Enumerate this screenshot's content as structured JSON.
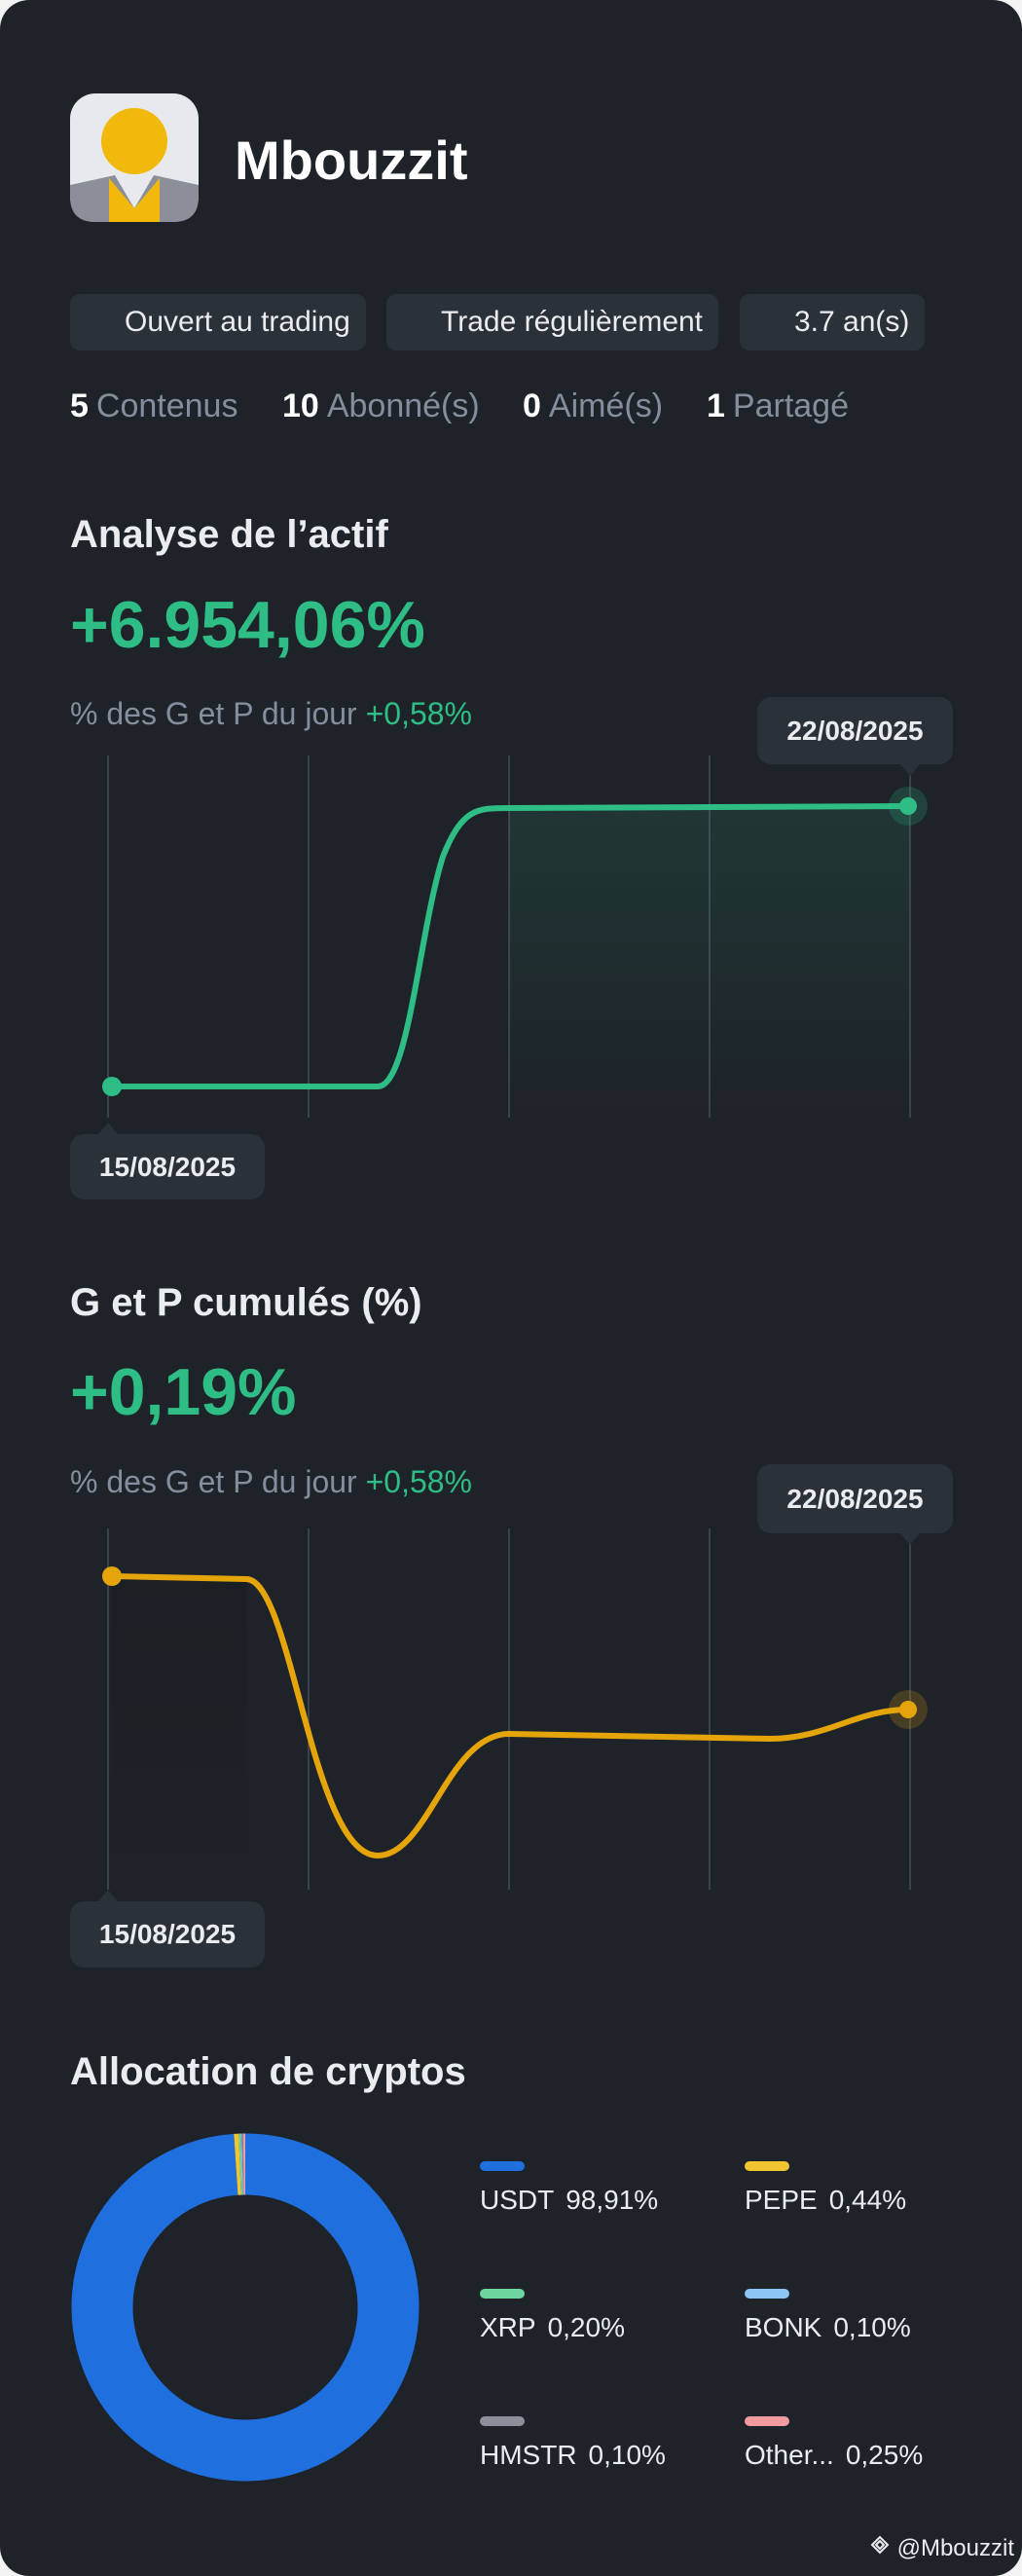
{
  "profile": {
    "name": "Mbouzzit",
    "badges": [
      "Ouvert au trading",
      "Trade régulièrement",
      "3.7 an(s)"
    ],
    "stats": [
      {
        "value": 5,
        "label": "Contenus"
      },
      {
        "value": 10,
        "label": "Abonné(s)"
      },
      {
        "value": 0,
        "label": "Aimé(s)"
      },
      {
        "value": 1,
        "label": "Partagé"
      }
    ]
  },
  "asset_analysis": {
    "title": "Analyse de l’actif",
    "value": "+6.954,06%",
    "daily_label": "% des G et P du jour",
    "daily_value": "+0,58%",
    "start_date": "15/08/2025",
    "end_date": "22/08/2025"
  },
  "cumulative_pnl": {
    "title": "G et P cumulés (%)",
    "value": "+0,19%",
    "daily_label": "% des G et P du jour",
    "daily_value": "+0,58%",
    "start_date": "15/08/2025",
    "end_date": "22/08/2025"
  },
  "allocation": {
    "type": "pie",
    "title": "Allocation de cryptos",
    "items": [
      {
        "name": "USDT",
        "value": 98.91,
        "label": "98,91%",
        "color": "#1f6fde"
      },
      {
        "name": "PEPE",
        "value": 0.44,
        "label": "0,44%",
        "color": "#f0c52f"
      },
      {
        "name": "XRP",
        "value": 0.2,
        "label": "0,20%",
        "color": "#6fd5a0"
      },
      {
        "name": "BONK",
        "value": 0.1,
        "label": "0,10%",
        "color": "#8cc4f5"
      },
      {
        "name": "HMSTR",
        "value": 0.1,
        "label": "0,10%",
        "color": "#8a8f99"
      },
      {
        "name": "Other...",
        "value": 0.25,
        "label": "0,25%",
        "color": "#f09aa1"
      }
    ]
  },
  "watermark": "@Mbouzzit"
}
